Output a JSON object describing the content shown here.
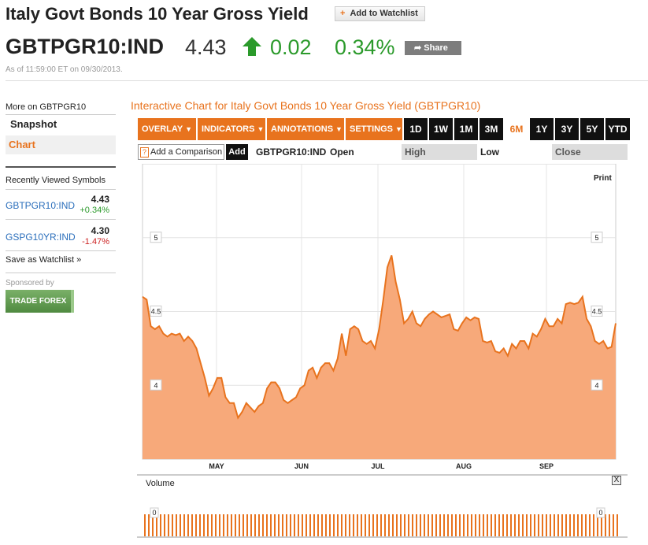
{
  "header": {
    "title": "Italy Govt Bonds 10 Year Gross Yield",
    "watchlist_label": "Add to Watchlist",
    "ticker": "GBTPGR10:IND",
    "price": "4.43",
    "change": "0.02",
    "change_pct": "0.34%",
    "share_label": "Share",
    "as_of": "As of 11:59:00 ET on 09/30/2013."
  },
  "sidebar": {
    "more_on": "More on GBTPGR10",
    "nav": [
      {
        "label": "Snapshot"
      },
      {
        "label": "Chart"
      }
    ],
    "recent_title": "Recently Viewed Symbols",
    "recent": [
      {
        "symbol": "GBTPGR10:IND",
        "price": "4.43",
        "pct": "+0.34%",
        "color": "#2b9a2b"
      },
      {
        "symbol": "GSPG10YR:IND",
        "price": "4.30",
        "pct": "-1.47%",
        "color": "#cc2222"
      }
    ],
    "save_watchlist": "Save as Watchlist",
    "sponsored": "Sponsored by",
    "ad_label": "TRADE FOREX"
  },
  "chart_panel": {
    "title": "Interactive Chart for Italy Govt Bonds 10 Year Gross Yield (GBTPGR10)",
    "menus": [
      "OVERLAY",
      "INDICATORS",
      "ANNOTATIONS",
      "SETTINGS"
    ],
    "ranges": [
      "1D",
      "1W",
      "1M",
      "3M",
      "6M",
      "1Y",
      "3Y",
      "5Y",
      "YTD"
    ],
    "active_range": "6M",
    "comparison_placeholder": "Add a Comparison",
    "comparison_help": "?",
    "add_label": "Add",
    "ohlc": {
      "symbol": "GBTPGR10:IND",
      "open": "Open",
      "high": "High",
      "low": "Low",
      "close": "Close"
    },
    "print_label": "Print",
    "volume_label": "Volume",
    "volume_close": "X",
    "volume_tick": "0"
  },
  "colors": {
    "accent": "#e8731e",
    "area_fill": "#f7a97a",
    "positive": "#2b9a2b",
    "negative": "#cc2222"
  },
  "chart_data": {
    "type": "area",
    "x_tick_labels": [
      "MAY",
      "JUN",
      "JUL",
      "AUG",
      "SEP"
    ],
    "y_ticks": [
      4,
      4.5,
      5
    ],
    "ylim": [
      3.5,
      5.5
    ],
    "grid": true,
    "series": [
      {
        "values": [
          4.6,
          4.58,
          4.4,
          4.38,
          4.4,
          4.35,
          4.33,
          4.35,
          4.34,
          4.35,
          4.3,
          4.33,
          4.3,
          4.25,
          4.15,
          4.05,
          3.93,
          3.98,
          4.05,
          4.05,
          3.92,
          3.88,
          3.88,
          3.78,
          3.82,
          3.88,
          3.85,
          3.82,
          3.86,
          3.88,
          3.98,
          4.02,
          4.02,
          3.98,
          3.9,
          3.88,
          3.9,
          3.92,
          3.98,
          4.0,
          4.1,
          4.12,
          4.05,
          4.12,
          4.15,
          4.15,
          4.1,
          4.18,
          4.35,
          4.2,
          4.38,
          4.4,
          4.38,
          4.3,
          4.28,
          4.3,
          4.25,
          4.38,
          4.58,
          4.8,
          4.88,
          4.7,
          4.58,
          4.42,
          4.45,
          4.5,
          4.42,
          4.4,
          4.45,
          4.48,
          4.5,
          4.48,
          4.46,
          4.47,
          4.48,
          4.38,
          4.37,
          4.42,
          4.46,
          4.44,
          4.46,
          4.45,
          4.3,
          4.29,
          4.3,
          4.23,
          4.22,
          4.25,
          4.2,
          4.28,
          4.25,
          4.3,
          4.3,
          4.25,
          4.35,
          4.33,
          4.38,
          4.45,
          4.4,
          4.4,
          4.45,
          4.42,
          4.55,
          4.56,
          4.55,
          4.56,
          4.6,
          4.45,
          4.4,
          4.3,
          4.28,
          4.3,
          4.25,
          4.26,
          4.42
        ]
      }
    ],
    "volume": {
      "ylim": [
        0,
        1
      ],
      "values": "flat"
    }
  }
}
